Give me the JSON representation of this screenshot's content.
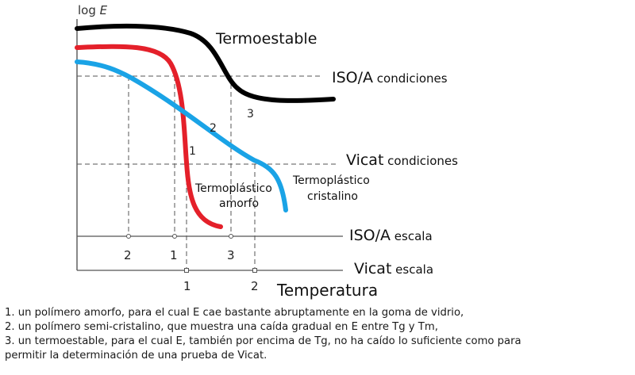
{
  "axis": {
    "y_label_prefix": "log ",
    "y_label_var": "E",
    "x_label": "Temperatura"
  },
  "curves": {
    "thermoset": {
      "label": "Termoestable",
      "number": "3",
      "color": "#000000"
    },
    "amorphous": {
      "label_line1": "Termoplástico",
      "label_line2": "amorfo",
      "number": "1",
      "color": "#e4202a"
    },
    "crystalline": {
      "label_line1": "Termoplástico",
      "label_line2": "cristalino",
      "number": "2",
      "color": "#1aa3e6"
    }
  },
  "conditions": {
    "iso": {
      "big": "ISO/A",
      "small": " condiciones"
    },
    "vicat": {
      "big": "Vicat",
      "small": "  condiciones"
    }
  },
  "scales": {
    "iso": {
      "big": "ISO/A",
      "small": " escala",
      "ticks": [
        "2",
        "1",
        "3"
      ]
    },
    "vicat": {
      "big": "Vicat",
      "small": " escala",
      "ticks": [
        "1",
        "2"
      ]
    }
  },
  "caption": {
    "line1": "1. un polímero amorfo, para el cual E cae bastante abruptamente en la goma de vidrio,",
    "line2": "2. un polímero semi-cristalino, que muestra una caída gradual en E entre Tg y Tm,",
    "line3": "3. un termoestable, para el cual E, también por encima de Tg, no ha caído lo suficiente como para",
    "line4": "permitir la determinación de una prueba de Vicat."
  }
}
